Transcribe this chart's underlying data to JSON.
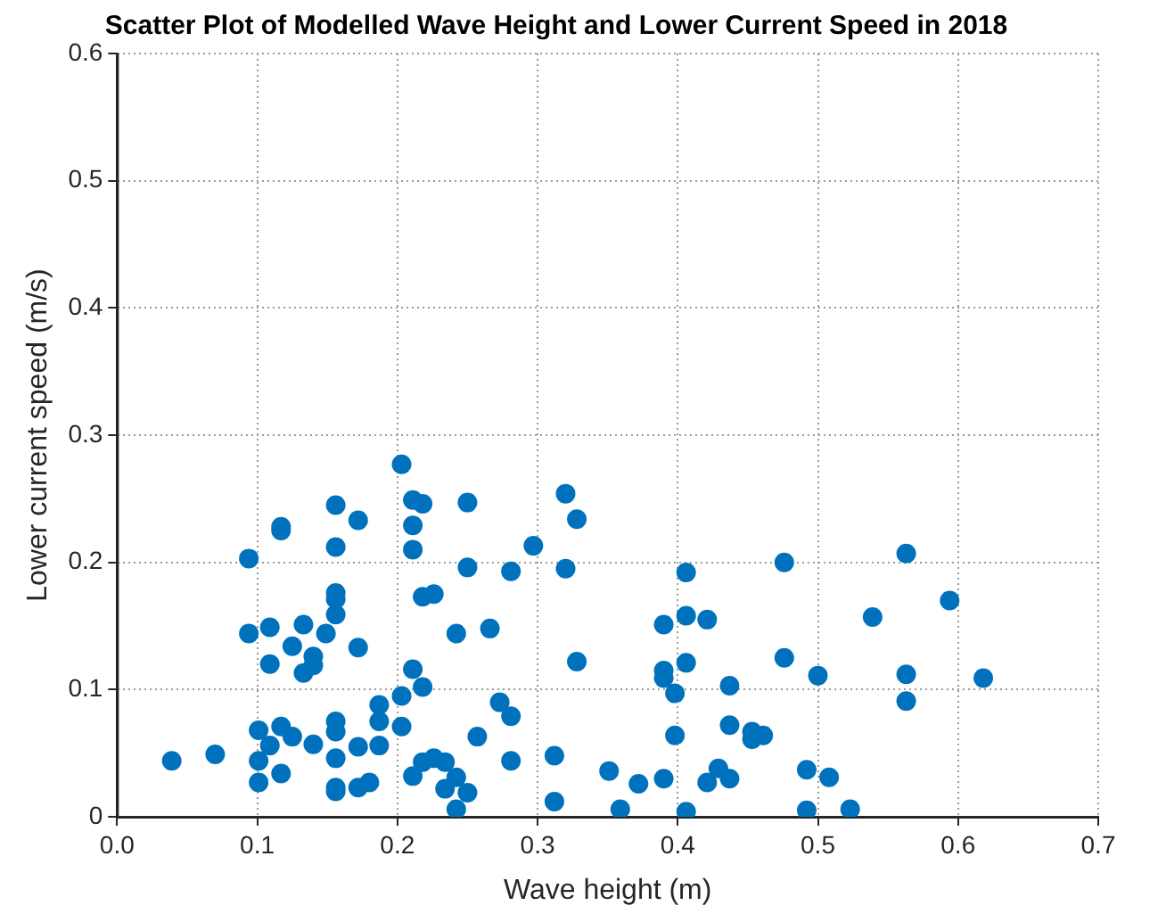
{
  "chart_data": {
    "type": "scatter",
    "title": "Scatter Plot of Modelled Wave Height and Lower Current Speed in 2018",
    "xlabel": "Wave height (m)",
    "ylabel": "Lower current speed (m/s)",
    "xlim": [
      0,
      0.7
    ],
    "xticks": [
      {
        "value": 0,
        "label": "0.0"
      },
      0.1,
      0.2,
      0.3,
      0.4,
      0.5,
      0.6,
      0.7
    ],
    "ylim": [
      0,
      0.6
    ],
    "yticks": [
      {
        "value": 0,
        "label": "0"
      },
      0.1,
      0.2,
      0.3,
      0.4,
      0.5,
      0.6
    ],
    "grid": true,
    "legend": false,
    "marker": "circle",
    "series": [
      {
        "color": "#0072bd",
        "x": [
          0.039,
          0.07,
          0.094,
          0.094,
          0.101,
          0.101,
          0.101,
          0.109,
          0.109,
          0.109,
          0.117,
          0.117,
          0.117,
          0.117,
          0.125,
          0.125,
          0.133,
          0.133,
          0.14,
          0.14,
          0.14,
          0.149,
          0.156,
          0.156,
          0.156,
          0.156,
          0.156,
          0.156,
          0.156,
          0.156,
          0.156,
          0.156,
          0.172,
          0.172,
          0.172,
          0.172,
          0.18,
          0.187,
          0.187,
          0.187,
          0.203,
          0.203,
          0.203,
          0.211,
          0.211,
          0.211,
          0.211,
          0.211,
          0.218,
          0.218,
          0.218,
          0.218,
          0.226,
          0.226,
          0.234,
          0.242,
          0.234,
          0.25,
          0.242,
          0.25,
          0.25,
          0.242,
          0.266,
          0.257,
          0.273,
          0.281,
          0.281,
          0.281,
          0.297,
          0.32,
          0.328,
          0.32,
          0.328,
          0.312,
          0.312,
          0.351,
          0.359,
          0.372,
          0.39,
          0.39,
          0.39,
          0.39,
          0.398,
          0.398,
          0.406,
          0.406,
          0.406,
          0.406,
          0.421,
          0.421,
          0.429,
          0.437,
          0.437,
          0.437,
          0.453,
          0.453,
          0.461,
          0.476,
          0.476,
          0.492,
          0.492,
          0.5,
          0.508,
          0.523,
          0.539,
          0.563,
          0.563,
          0.563,
          0.594,
          0.618
        ],
        "values": [
          0.044,
          0.049,
          0.203,
          0.144,
          0.068,
          0.044,
          0.027,
          0.149,
          0.12,
          0.056,
          0.228,
          0.225,
          0.071,
          0.034,
          0.134,
          0.063,
          0.151,
          0.113,
          0.126,
          0.119,
          0.057,
          0.144,
          0.245,
          0.212,
          0.176,
          0.171,
          0.159,
          0.075,
          0.067,
          0.046,
          0.023,
          0.02,
          0.233,
          0.133,
          0.055,
          0.023,
          0.027,
          0.088,
          0.075,
          0.056,
          0.277,
          0.095,
          0.071,
          0.249,
          0.229,
          0.21,
          0.116,
          0.032,
          0.246,
          0.173,
          0.102,
          0.043,
          0.175,
          0.046,
          0.043,
          0.031,
          0.022,
          0.019,
          0.006,
          0.247,
          0.196,
          0.144,
          0.148,
          0.063,
          0.09,
          0.079,
          0.044,
          0.193,
          0.213,
          0.254,
          0.234,
          0.195,
          0.122,
          0.048,
          0.012,
          0.036,
          0.006,
          0.026,
          0.151,
          0.115,
          0.109,
          0.03,
          0.097,
          0.064,
          0.192,
          0.158,
          0.121,
          0.004,
          0.155,
          0.027,
          0.038,
          0.103,
          0.072,
          0.03,
          0.067,
          0.061,
          0.064,
          0.2,
          0.125,
          0.037,
          0.005,
          0.111,
          0.031,
          0.006,
          0.157,
          0.207,
          0.112,
          0.091,
          0.17,
          0.109
        ]
      }
    ]
  }
}
